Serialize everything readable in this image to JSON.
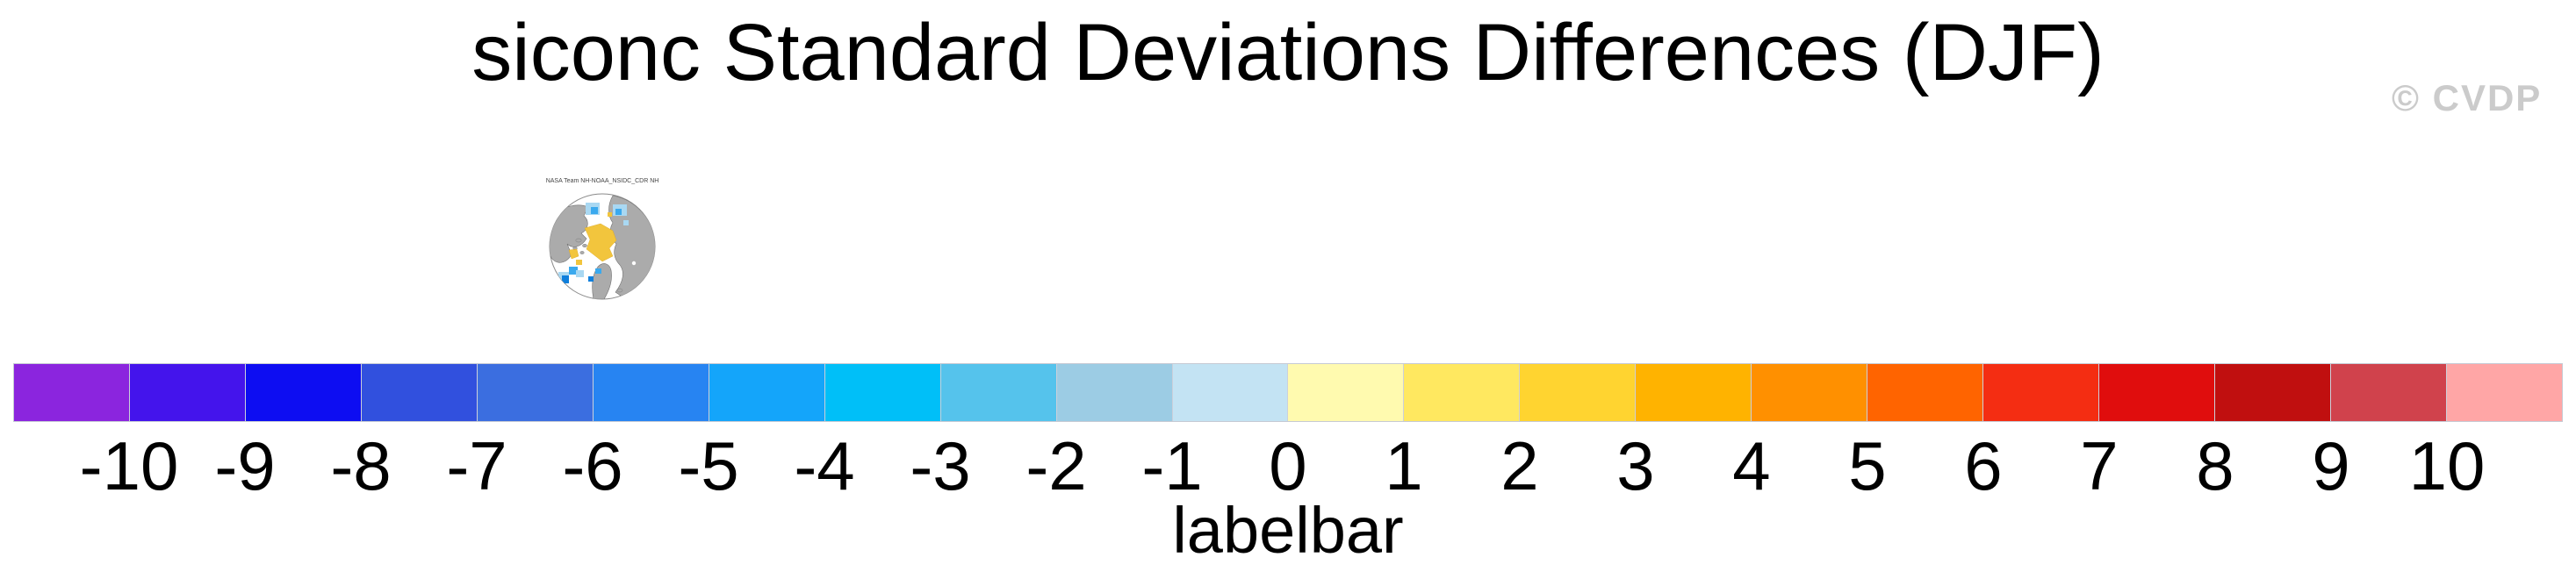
{
  "page": {
    "title": "siconc Standard Deviations Differences (DJF)",
    "watermark": "© CVDP"
  },
  "map_thumbnail": {
    "title": "NASA Team NH-NOAA_NSIDC_CDR NH",
    "projection": "north-polar-stereographic",
    "land_color": "#ababab",
    "ocean_color": "#ffffff",
    "positive_patch_color": "#f2c53d",
    "negative_patch_light": "#a9d8f2",
    "negative_patch_medium": "#3aa9ee",
    "negative_patch_deep": "#0f7fdc",
    "outline_color": "#8a8a8a"
  },
  "colorbar": {
    "caption": "labelbar",
    "labels": [
      "-10",
      "-9",
      "-8",
      "-7",
      "-6",
      "-5",
      "-4",
      "-3",
      "-2",
      "-1",
      "0",
      "1",
      "2",
      "3",
      "4",
      "5",
      "6",
      "7",
      "8",
      "9",
      "10"
    ],
    "colors": [
      "#8b25de",
      "#4414ec",
      "#0d0df2",
      "#3150de",
      "#3b6ee0",
      "#2784f2",
      "#14a5fa",
      "#00bff8",
      "#55c3ec",
      "#9ccce4",
      "#c3e3f3",
      "#fffaaf",
      "#ffe860",
      "#ffd430",
      "#ffb300",
      "#ff9000",
      "#ff6400",
      "#f42d12",
      "#e00d0d",
      "#c00f0f",
      "#d0424c",
      "#ffa6a6"
    ],
    "border_color": "#c6cad4"
  },
  "chart_data": {
    "type": "heatmap",
    "title": "siconc Standard Deviations Differences (DJF)",
    "subtitle": "NASA Team NH-NOAA_NSIDC_CDR NH",
    "colorbar_label": "labelbar",
    "levels": [
      -10,
      -9,
      -8,
      -7,
      -6,
      -5,
      -4,
      -3,
      -2,
      -1,
      0,
      1,
      2,
      3,
      4,
      5,
      6,
      7,
      8,
      9,
      10
    ],
    "colors": [
      "#8b25de",
      "#4414ec",
      "#0d0df2",
      "#3150de",
      "#3b6ee0",
      "#2784f2",
      "#14a5fa",
      "#00bff8",
      "#55c3ec",
      "#9ccce4",
      "#c3e3f3",
      "#fffaaf",
      "#ffe860",
      "#ffd430",
      "#ffb300",
      "#ff9000",
      "#ff6400",
      "#f42d12",
      "#e00d0d",
      "#c00f0f",
      "#d0424c",
      "#ffa6a6"
    ],
    "legend_position": "bottom",
    "notes": "Single small north-polar stereographic map panel; yellow (positive) anomalies over central Arctic, scattered blue (negative) cells over Bering/Okhotsk and Barents sectors; gray land, white ocean."
  }
}
